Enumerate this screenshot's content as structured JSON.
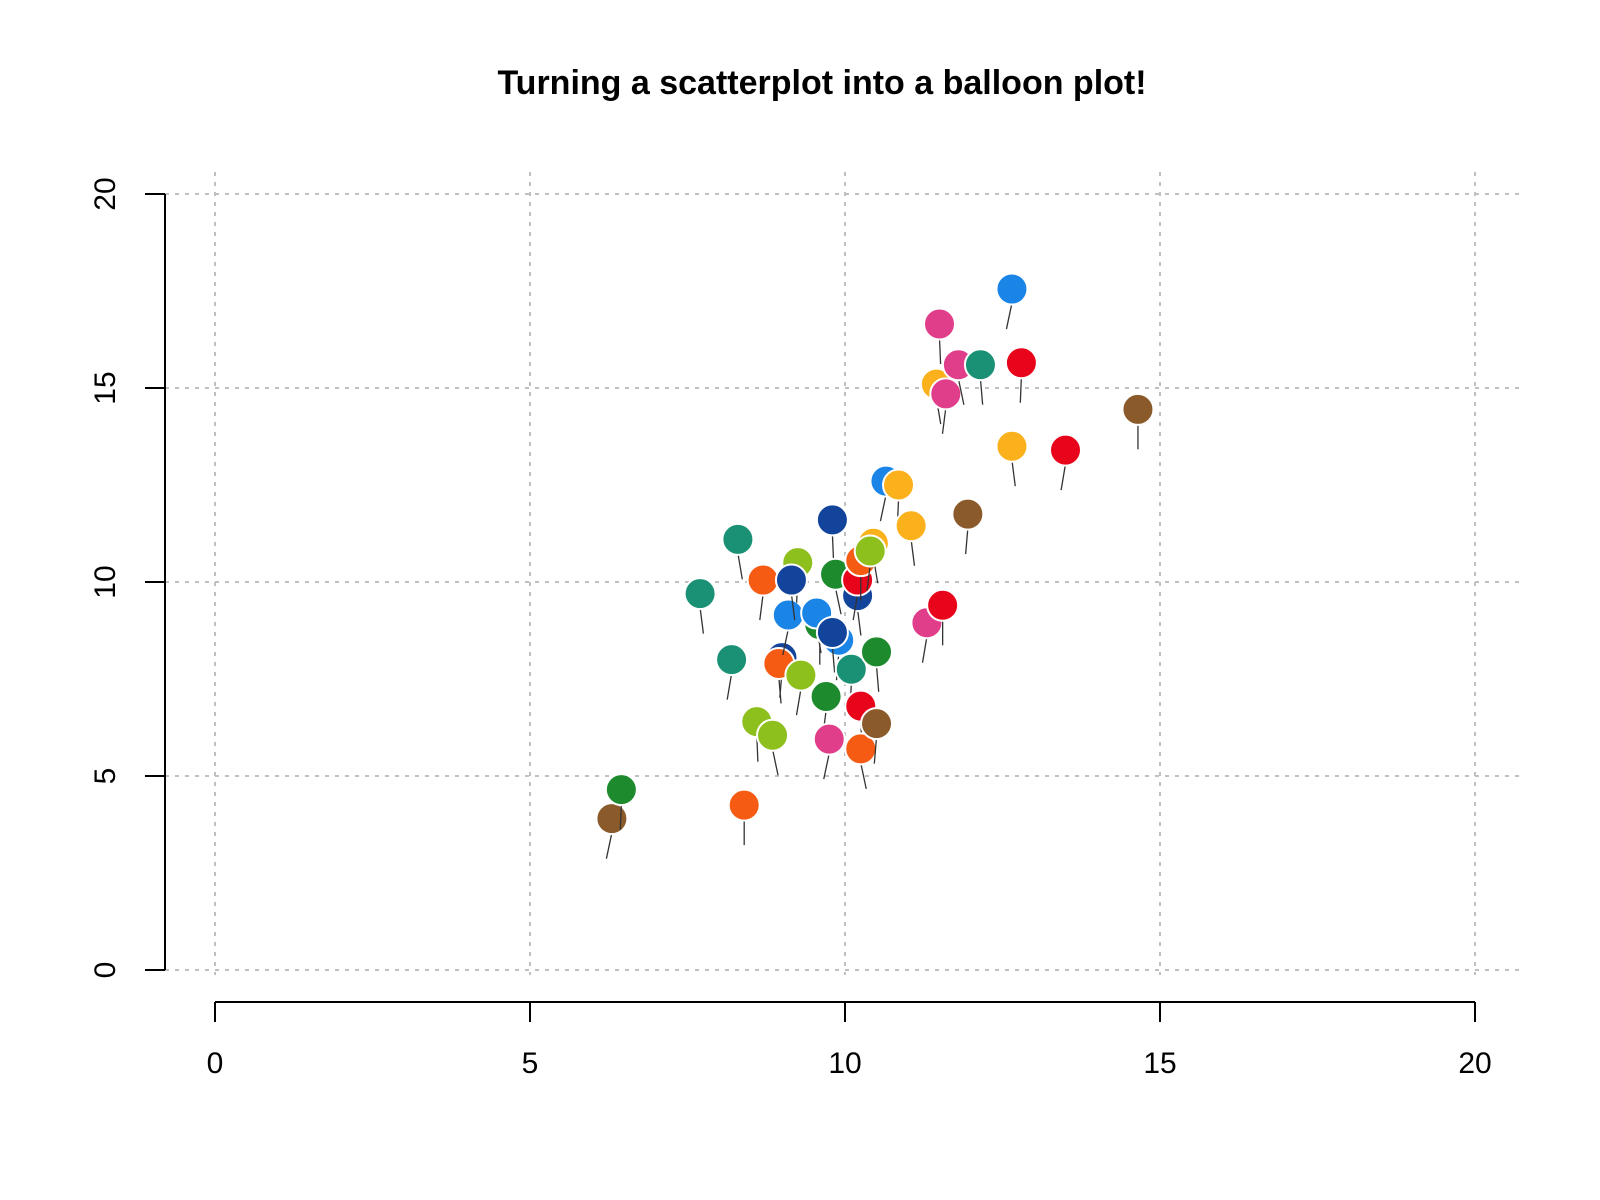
{
  "chart_data": {
    "type": "scatter",
    "title": "Turning a scatterplot into a balloon plot!",
    "xlabel": "",
    "ylabel": "",
    "xlim": [
      0,
      20
    ],
    "ylim": [
      0,
      20
    ],
    "x_ticks": [
      "0",
      "5",
      "10",
      "15",
      "20"
    ],
    "y_ticks": [
      "0",
      "5",
      "10",
      "15",
      "20"
    ],
    "grid": true,
    "legend": "none",
    "points": [
      {
        "x": 6.3,
        "y": 3.9,
        "color": "#8a5a2b"
      },
      {
        "x": 6.45,
        "y": 4.65,
        "color": "#1e8a2e"
      },
      {
        "x": 7.7,
        "y": 9.7,
        "color": "#1a9175"
      },
      {
        "x": 8.2,
        "y": 8.0,
        "color": "#1a9175"
      },
      {
        "x": 8.4,
        "y": 4.25,
        "color": "#f55b12"
      },
      {
        "x": 8.3,
        "y": 11.1,
        "color": "#1a9175"
      },
      {
        "x": 8.7,
        "y": 10.05,
        "color": "#f55b12"
      },
      {
        "x": 8.6,
        "y": 6.4,
        "color": "#8dbf1d"
      },
      {
        "x": 8.85,
        "y": 6.05,
        "color": "#8dbf1d"
      },
      {
        "x": 9.0,
        "y": 8.05,
        "color": "#13449b"
      },
      {
        "x": 8.95,
        "y": 7.9,
        "color": "#f55b12"
      },
      {
        "x": 9.1,
        "y": 9.15,
        "color": "#1a85e6"
      },
      {
        "x": 9.25,
        "y": 10.5,
        "color": "#8dbf1d"
      },
      {
        "x": 9.15,
        "y": 10.05,
        "color": "#13449b"
      },
      {
        "x": 9.3,
        "y": 7.6,
        "color": "#8dbf1d"
      },
      {
        "x": 9.6,
        "y": 8.9,
        "color": "#1e8a2e"
      },
      {
        "x": 9.55,
        "y": 9.2,
        "color": "#1a85e6"
      },
      {
        "x": 9.7,
        "y": 7.05,
        "color": "#1e8a2e"
      },
      {
        "x": 9.8,
        "y": 11.6,
        "color": "#13449b"
      },
      {
        "x": 9.85,
        "y": 10.2,
        "color": "#1e8a2e"
      },
      {
        "x": 9.9,
        "y": 8.5,
        "color": "#1a85e6"
      },
      {
        "x": 9.8,
        "y": 8.7,
        "color": "#13449b"
      },
      {
        "x": 9.75,
        "y": 5.95,
        "color": "#e03d8a"
      },
      {
        "x": 10.1,
        "y": 7.75,
        "color": "#1a9175"
      },
      {
        "x": 10.2,
        "y": 9.65,
        "color": "#13449b"
      },
      {
        "x": 10.2,
        "y": 10.05,
        "color": "#e8051c"
      },
      {
        "x": 10.25,
        "y": 10.55,
        "color": "#f55b12"
      },
      {
        "x": 10.45,
        "y": 11.0,
        "color": "#fbb11c"
      },
      {
        "x": 10.4,
        "y": 10.8,
        "color": "#8dbf1d"
      },
      {
        "x": 10.25,
        "y": 6.8,
        "color": "#e8051c"
      },
      {
        "x": 10.25,
        "y": 5.7,
        "color": "#f55b12"
      },
      {
        "x": 10.5,
        "y": 6.35,
        "color": "#8a5a2b"
      },
      {
        "x": 10.5,
        "y": 8.2,
        "color": "#1e8a2e"
      },
      {
        "x": 10.65,
        "y": 12.6,
        "color": "#1a85e6"
      },
      {
        "x": 10.85,
        "y": 12.5,
        "color": "#fbb11c"
      },
      {
        "x": 11.05,
        "y": 11.45,
        "color": "#fbb11c"
      },
      {
        "x": 11.3,
        "y": 8.95,
        "color": "#e03d8a"
      },
      {
        "x": 11.55,
        "y": 9.4,
        "color": "#e8051c"
      },
      {
        "x": 11.45,
        "y": 15.1,
        "color": "#fbb11c"
      },
      {
        "x": 11.6,
        "y": 14.85,
        "color": "#e03d8a"
      },
      {
        "x": 11.5,
        "y": 16.65,
        "color": "#e03d8a"
      },
      {
        "x": 11.8,
        "y": 15.6,
        "color": "#e03d8a"
      },
      {
        "x": 11.95,
        "y": 11.75,
        "color": "#8a5a2b"
      },
      {
        "x": 12.15,
        "y": 15.6,
        "color": "#1a9175"
      },
      {
        "x": 12.65,
        "y": 17.55,
        "color": "#1a85e6"
      },
      {
        "x": 12.8,
        "y": 15.65,
        "color": "#e8051c"
      },
      {
        "x": 12.65,
        "y": 13.5,
        "color": "#fbb11c"
      },
      {
        "x": 13.5,
        "y": 13.4,
        "color": "#e8051c"
      },
      {
        "x": 14.65,
        "y": 14.45,
        "color": "#8a5a2b"
      }
    ]
  }
}
